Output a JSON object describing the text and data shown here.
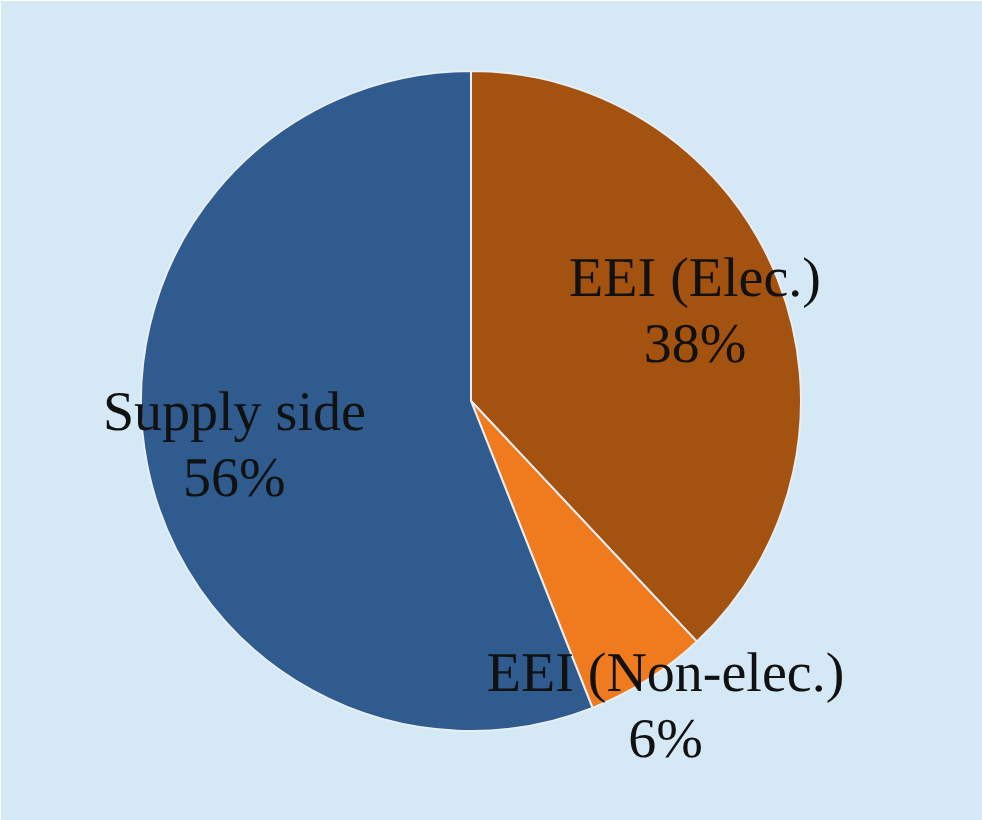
{
  "chart_data": {
    "type": "pie",
    "categories": [
      "EEI (Elec.)",
      "EEI (Non-elec.)",
      "Supply side"
    ],
    "values": [
      38,
      6,
      56
    ],
    "colors": [
      "#a4520f",
      "#f07a1e",
      "#2f5b8e"
    ],
    "value_labels": [
      "38%",
      "6%",
      "56%"
    ]
  }
}
